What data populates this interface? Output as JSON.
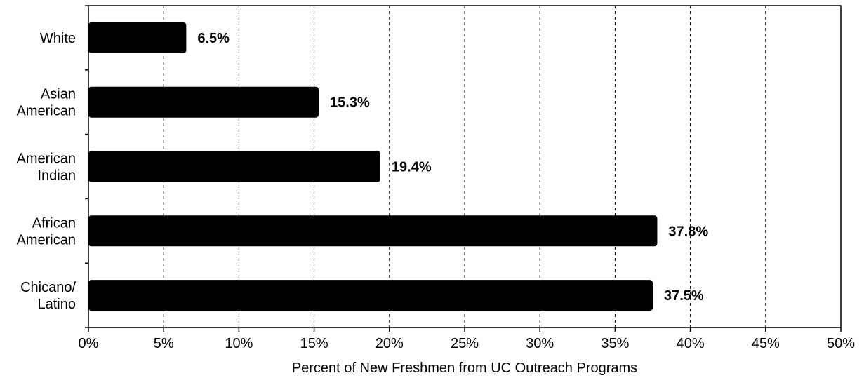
{
  "chart_data": {
    "type": "bar",
    "orientation": "horizontal",
    "categories": [
      [
        "White"
      ],
      [
        "Asian",
        "American"
      ],
      [
        "American",
        "Indian"
      ],
      [
        "African",
        "American"
      ],
      [
        "Chicano/",
        "Latino"
      ]
    ],
    "values": [
      6.5,
      15.3,
      19.4,
      37.8,
      37.5
    ],
    "data_labels": [
      "6.5%",
      "15.3%",
      "19.4%",
      "37.8%",
      "37.5%"
    ],
    "xlabel": "Percent of New Freshmen from UC Outreach Programs",
    "xlim": [
      0,
      50
    ],
    "x_ticks": [
      0,
      5,
      10,
      15,
      20,
      25,
      30,
      35,
      40,
      45,
      50
    ],
    "x_tick_labels": [
      "0%",
      "5%",
      "10%",
      "15%",
      "20%",
      "25%",
      "30%",
      "35%",
      "40%",
      "45%",
      "50%"
    ],
    "grid": "vertical dashed",
    "bar_color": "#000000"
  }
}
